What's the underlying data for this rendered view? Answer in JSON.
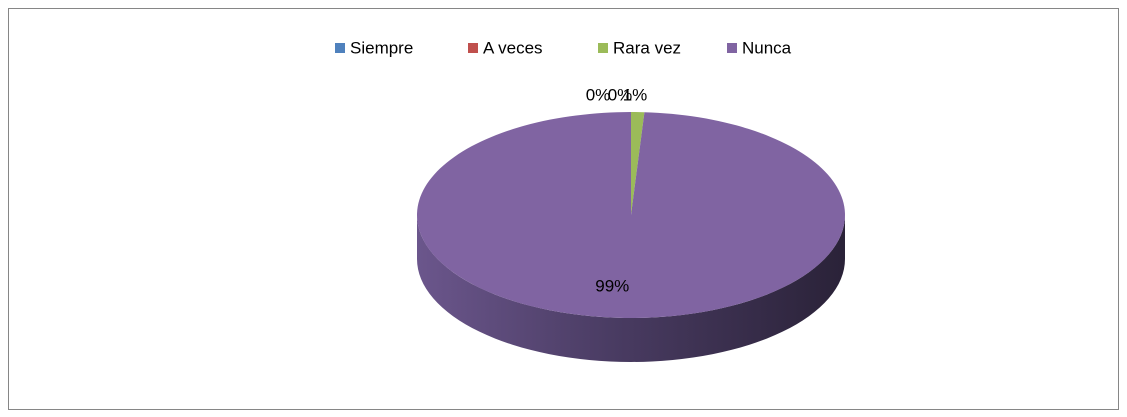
{
  "chart_data": {
    "type": "pie",
    "categories": [
      "Siempre",
      "A veces",
      "Rara vez",
      "Nunca"
    ],
    "values": [
      0,
      0,
      1,
      99
    ],
    "value_labels": [
      "0%",
      "0%",
      "1%",
      "99%"
    ],
    "colors": [
      "#4f81bd",
      "#c0504d",
      "#9bbb59",
      "#8064a2"
    ],
    "legend": "top"
  }
}
